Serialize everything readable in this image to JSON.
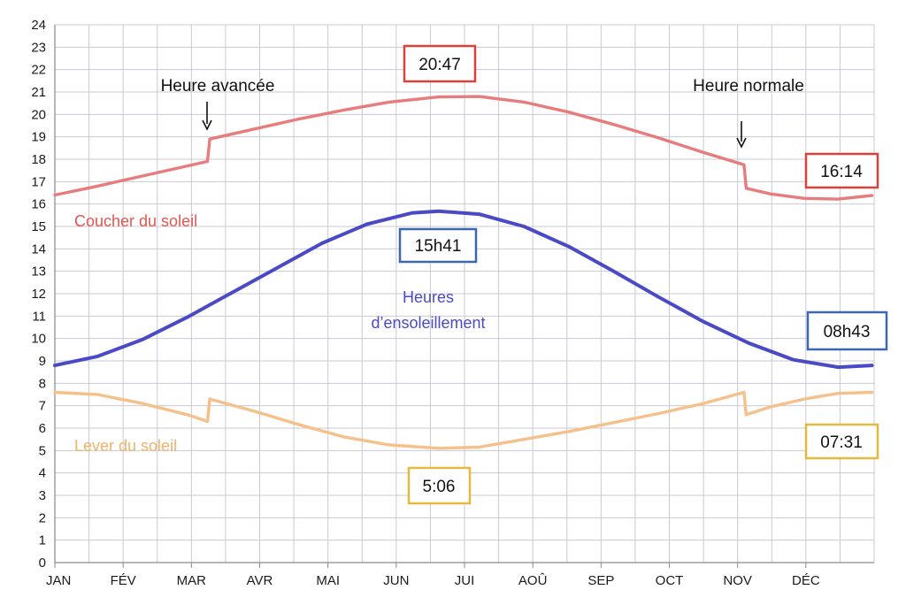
{
  "chart_data": {
    "type": "line",
    "title": "",
    "xlabel": "",
    "ylabel": "",
    "ylim": [
      0,
      24
    ],
    "yticks": [
      "0",
      "1",
      "2",
      "3",
      "4",
      "5",
      "6",
      "7",
      "8",
      "9",
      "10",
      "11",
      "12",
      "13",
      "14",
      "15",
      "16",
      "17",
      "18",
      "19",
      "20",
      "21",
      "22",
      "23",
      "24"
    ],
    "months": [
      "JAN",
      "FÉV",
      "MAR",
      "AVR",
      "MAI",
      "JUN",
      "JUI",
      "AOÛ",
      "SEP",
      "OCT",
      "NOV",
      "DÉC"
    ],
    "grid": true,
    "x_unit": "day of year",
    "series": [
      {
        "name": "Coucher du soleil",
        "color": "#e87b7b",
        "x": [
          1,
          20,
          40,
          60,
          69,
          70,
          90,
          110,
          130,
          150,
          172,
          190,
          210,
          230,
          250,
          270,
          290,
          308,
          309,
          320,
          335,
          350,
          365
        ],
        "y": [
          16.4,
          16.8,
          17.25,
          17.7,
          17.9,
          18.9,
          19.35,
          19.8,
          20.2,
          20.55,
          20.78,
          20.8,
          20.55,
          20.1,
          19.55,
          18.95,
          18.3,
          17.75,
          16.7,
          16.45,
          16.25,
          16.22,
          16.38
        ]
      },
      {
        "name": "Heures d’ensoleillement",
        "color": "#4a4ac6",
        "x": [
          1,
          20,
          40,
          60,
          80,
          100,
          120,
          140,
          160,
          172,
          190,
          210,
          230,
          250,
          270,
          290,
          310,
          330,
          350,
          365
        ],
        "y": [
          8.8,
          9.2,
          9.95,
          10.95,
          12.05,
          13.15,
          14.25,
          15.1,
          15.6,
          15.68,
          15.55,
          15.0,
          14.1,
          13.0,
          11.85,
          10.75,
          9.8,
          9.05,
          8.72,
          8.8
        ]
      },
      {
        "name": "Lever du soleil",
        "color": "#f5c08a",
        "x": [
          1,
          20,
          40,
          60,
          69,
          70,
          90,
          110,
          130,
          150,
          172,
          190,
          210,
          230,
          250,
          270,
          290,
          308,
          309,
          320,
          335,
          350,
          365
        ],
        "y": [
          7.6,
          7.5,
          7.1,
          6.6,
          6.3,
          7.3,
          6.75,
          6.15,
          5.6,
          5.25,
          5.1,
          5.15,
          5.5,
          5.85,
          6.25,
          6.65,
          7.1,
          7.6,
          6.6,
          6.95,
          7.3,
          7.55,
          7.6
        ]
      }
    ],
    "series_labels": {
      "sunset": "Coucher du soleil",
      "daylight_line1": "Heures",
      "daylight_line2": "d’ensoleillement",
      "sunrise": "Lever du soleil"
    },
    "annotations": {
      "dst_start": "Heure avancée",
      "dst_end": "Heure normale"
    },
    "boxes": {
      "sunset_max": {
        "text": "20:47",
        "color": "#d9413a"
      },
      "sunset_min": {
        "text": "16:14",
        "color": "#d9413a"
      },
      "daylight_max": {
        "text": "15h41",
        "color": "#3f66b0"
      },
      "daylight_min": {
        "text": "08h43",
        "color": "#3f66b0"
      },
      "sunrise_min": {
        "text": "5:06",
        "color": "#e5b840"
      },
      "sunrise_max": {
        "text": "07:31",
        "color": "#e5b840"
      }
    },
    "colors": {
      "grid": "#c9c9d6",
      "axis": "#8a8a8a",
      "arrow": "#111111"
    }
  }
}
